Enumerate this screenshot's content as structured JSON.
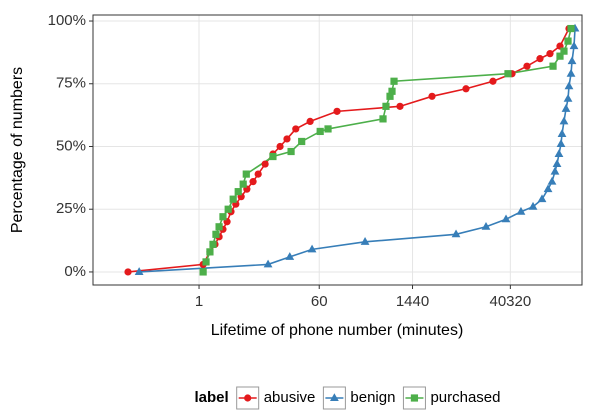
{
  "chart_data": {
    "type": "line",
    "xlabel": "Lifetime of phone number (minutes)",
    "ylabel": "Percentage of numbers",
    "xscale": "log",
    "xlim": [
      0.027,
      463000
    ],
    "ylim": [
      -5.2,
      102.4
    ],
    "xticks": [
      1,
      60,
      1440,
      40320
    ],
    "yticks": [
      {
        "value": 0,
        "label": "0%"
      },
      {
        "value": 25,
        "label": "25%"
      },
      {
        "value": 50,
        "label": "50%"
      },
      {
        "value": 75,
        "label": "75%"
      },
      {
        "value": 100,
        "label": "100%"
      }
    ],
    "grid": true,
    "legend_title": "label",
    "legend_position": "bottom",
    "series": [
      {
        "name": "abusive",
        "color": "#e41a1c",
        "marker": "circle",
        "x": [
          0.089,
          1.15,
          1.45,
          1.72,
          1.98,
          2.26,
          2.6,
          2.97,
          3.5,
          4.2,
          5.1,
          6.3,
          7.5,
          9.5,
          12.4,
          15.8,
          20,
          27,
          44,
          110,
          940,
          2800,
          8900,
          22300,
          42700,
          71100,
          110700,
          155600,
          218800,
          297200
        ],
        "values": [
          0,
          3,
          8,
          11,
          14,
          17,
          20,
          24,
          27,
          30,
          33,
          36,
          39,
          43,
          47,
          50,
          53,
          57,
          60,
          64,
          66,
          70,
          73,
          76,
          79,
          82,
          85,
          87,
          90,
          97
        ]
      },
      {
        "name": "benign",
        "color": "#377eb8",
        "marker": "triangle",
        "x": [
          0.13,
          10.5,
          22,
          47,
          286,
          6340,
          17600,
          34800,
          57900,
          87300,
          118600,
          145600,
          166700,
          184500,
          197700,
          211300,
          226400,
          234400,
          250600,
          268500,
          287700,
          297200,
          318500,
          329600,
          352500,
          365000
        ],
        "values": [
          0,
          3,
          6,
          9,
          12,
          15,
          18,
          21,
          24,
          26,
          29,
          33,
          36,
          40,
          43,
          47,
          51,
          55,
          60,
          65,
          69,
          74,
          79,
          84,
          90,
          97
        ]
      },
      {
        "name": "purchased",
        "color": "#4daf4a",
        "marker": "square",
        "x": [
          1.15,
          1.27,
          1.45,
          1.61,
          1.78,
          1.98,
          2.26,
          2.7,
          3.2,
          3.8,
          4.5,
          5.0,
          12.4,
          23,
          33,
          62,
          81,
          527,
          583,
          669,
          716,
          767,
          37200,
          172600,
          218800,
          250600,
          287700,
          318500
        ],
        "values": [
          0,
          4,
          8,
          11,
          15,
          18,
          22,
          25,
          29,
          32,
          35,
          39,
          46,
          48,
          52,
          56,
          57,
          61,
          66,
          70,
          72,
          76,
          79,
          82,
          86,
          88,
          92,
          97
        ]
      }
    ]
  }
}
